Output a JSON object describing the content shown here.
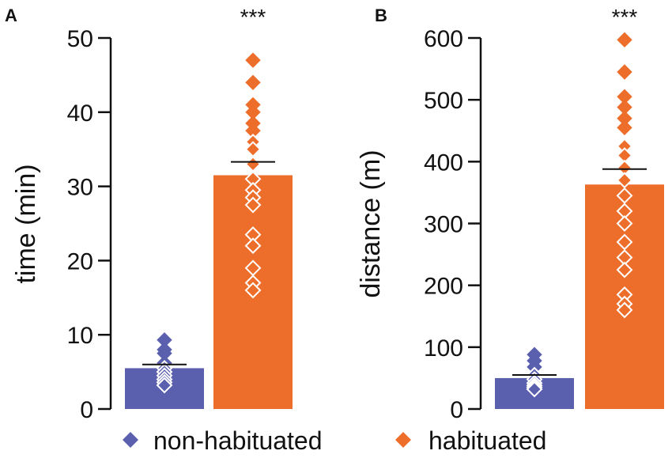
{
  "colors": {
    "non_habituated": "#5a5fae",
    "habituated": "#ed6d2b",
    "axis": "#111111",
    "mean_line": "#111111"
  },
  "legend": {
    "items": [
      {
        "label": "non-habituated",
        "color": "#5a5fae",
        "icon": "diamond-icon"
      },
      {
        "label": "habituated",
        "color": "#ed6d2b",
        "icon": "diamond-icon"
      }
    ]
  },
  "chart_data": [
    {
      "panel": "A",
      "type": "bar",
      "ylabel": "time (min)",
      "ylim": [
        0,
        50
      ],
      "yticks": [
        0,
        10,
        20,
        30,
        40,
        50
      ],
      "series": [
        {
          "name": "non-habituated",
          "bar_value": 5.5,
          "mean_line": 6.0,
          "points_filled": [
            9.3,
            8.0,
            7.5,
            6.2
          ],
          "points_open": [
            5.5,
            5.0,
            4.5,
            4.0,
            3.6,
            3.2
          ]
        },
        {
          "name": "habituated",
          "bar_value": 31.5,
          "mean_line": 33.3,
          "significance": "***",
          "points_filled": [
            47,
            44,
            41,
            40,
            38.5,
            37.5
          ],
          "points_open": [
            36,
            35,
            33,
            31,
            29.5,
            28.5,
            27.5,
            23.5,
            22,
            19,
            17,
            16
          ]
        }
      ]
    },
    {
      "panel": "B",
      "type": "bar",
      "ylabel": "distance (m)",
      "ylim": [
        0,
        600
      ],
      "yticks": [
        0,
        100,
        200,
        300,
        400,
        500,
        600
      ],
      "series": [
        {
          "name": "non-habituated",
          "bar_value": 50,
          "mean_line": 55,
          "points_filled": [
            88,
            78,
            68
          ],
          "points_open": [
            55,
            48,
            42,
            38,
            35,
            32
          ]
        },
        {
          "name": "habituated",
          "bar_value": 363,
          "mean_line": 388,
          "significance": "***",
          "points_filled": [
            597,
            545,
            505,
            488,
            470,
            455
          ],
          "points_open": [
            425,
            410,
            390,
            370,
            345,
            320,
            300,
            270,
            245,
            225,
            185,
            170,
            160
          ]
        }
      ]
    }
  ]
}
